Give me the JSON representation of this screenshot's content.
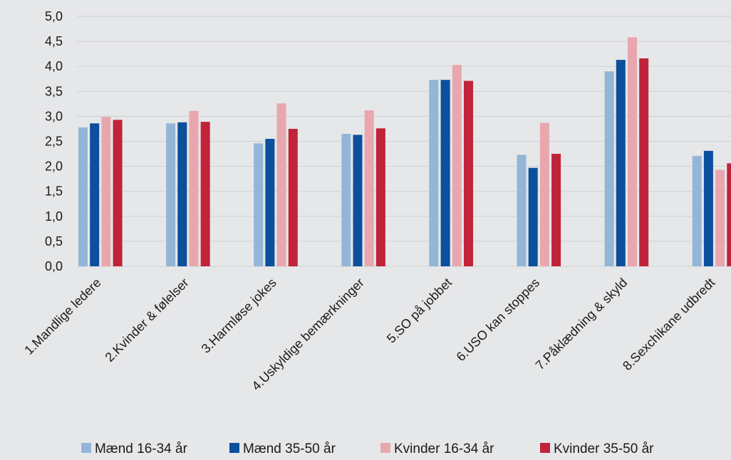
{
  "chart_data": {
    "type": "bar",
    "title": "",
    "xlabel": "",
    "ylabel": "",
    "ylim": [
      0,
      5
    ],
    "yticks": [
      "0,0",
      "0,5",
      "1,0",
      "1,5",
      "2,0",
      "2,5",
      "3,0",
      "3,5",
      "4,0",
      "4,5",
      "5,0"
    ],
    "grid": true,
    "legend_position": "bottom",
    "categories": [
      "1.Mandlige ledere",
      "2.Kvinder & følelser",
      "3.Harmløse jokes",
      "4.Uskyldige bemærkninger",
      "5.SO på jobbet",
      "6.USO kan stoppes",
      "7.Påklædning & skyld",
      "8.Sexchikane udbredt"
    ],
    "series": [
      {
        "name": "Mænd 16-34 år",
        "color": "#93b6d7",
        "values": [
          2.78,
          2.86,
          2.46,
          2.65,
          3.73,
          2.23,
          3.9,
          2.21
        ]
      },
      {
        "name": "Mænd 35-50 år",
        "color": "#0c4f9c",
        "values": [
          2.86,
          2.88,
          2.55,
          2.63,
          3.73,
          1.97,
          4.13,
          2.31
        ]
      },
      {
        "name": "Kvinder 16-34 år",
        "color": "#e8a7ae",
        "values": [
          2.99,
          3.11,
          3.26,
          3.12,
          4.03,
          2.87,
          4.58,
          1.93
        ]
      },
      {
        "name": "Kvinder 35-50 år",
        "color": "#c0233a",
        "values": [
          2.93,
          2.89,
          2.75,
          2.76,
          3.71,
          2.25,
          4.16,
          2.06
        ]
      }
    ]
  }
}
